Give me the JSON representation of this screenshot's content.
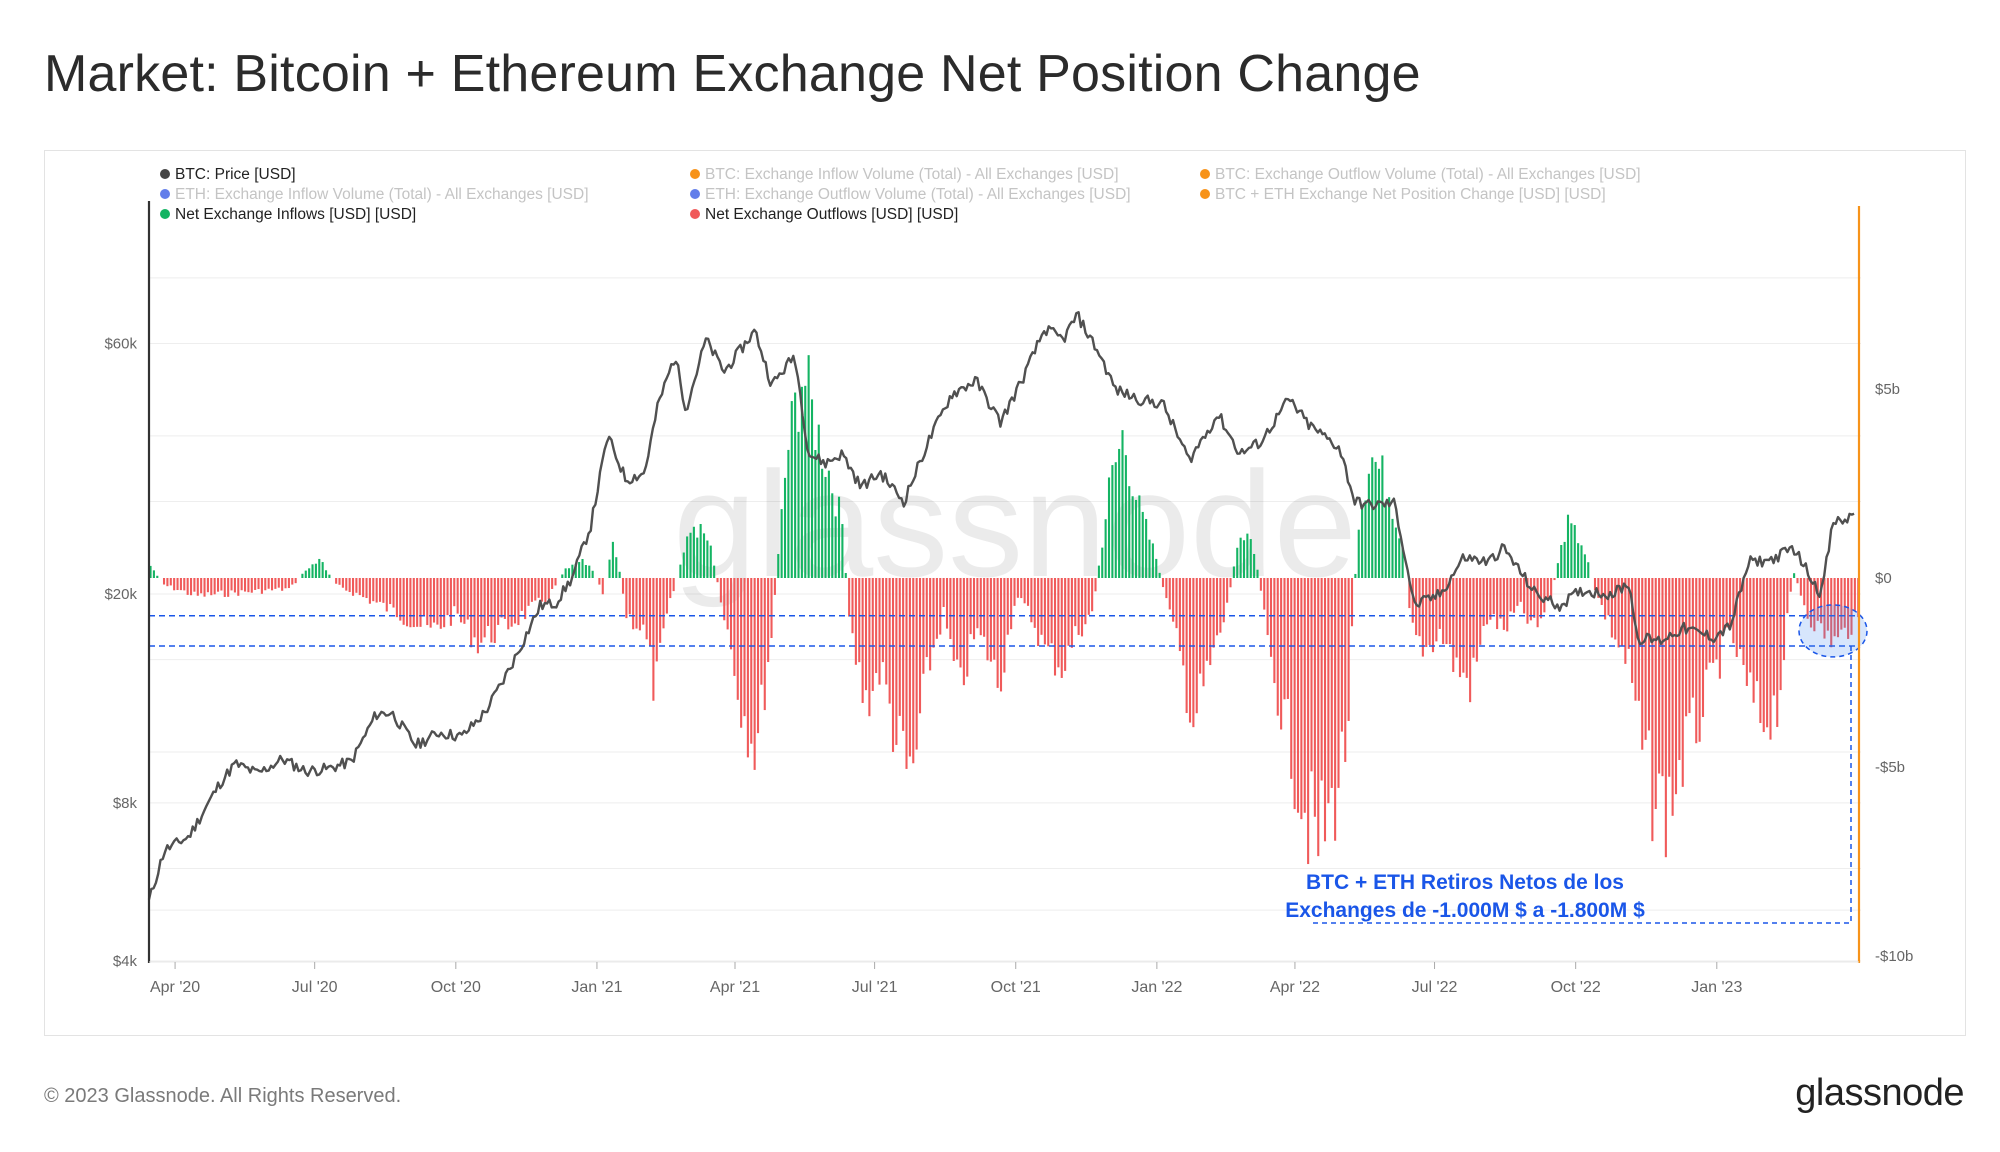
{
  "page": {
    "title": "Market: Bitcoin + Ethereum Exchange Net Position Change",
    "footer_copyright": "© 2023 Glassnode. All Rights Reserved.",
    "footer_logo": "glassnode",
    "watermark": "glassnode"
  },
  "chart_data": {
    "type": "bar",
    "legend": [
      {
        "label": "BTC: Price [USD]",
        "color": "#444444",
        "active": true
      },
      {
        "label": "BTC: Exchange Inflow Volume (Total) - All Exchanges [USD]",
        "color": "#f7931a",
        "active": false
      },
      {
        "label": "BTC: Exchange Outflow Volume (Total) - All Exchanges [USD]",
        "color": "#f7931a",
        "active": false
      },
      {
        "label": "ETH: Exchange Inflow Volume (Total) - All Exchanges [USD]",
        "color": "#627eea",
        "active": false
      },
      {
        "label": "ETH: Exchange Outflow Volume (Total) - All Exchanges [USD]",
        "color": "#627eea",
        "active": false
      },
      {
        "label": "BTC + ETH Exchange Net Position Change [USD] [USD]",
        "color": "#f7931a",
        "active": false
      },
      {
        "label": "Net Exchange Inflows [USD] [USD]",
        "color": "#14b463",
        "active": true
      },
      {
        "label": "Net Exchange Outflows [USD] [USD]",
        "color": "#f05a5a",
        "active": true
      }
    ],
    "x_ticks": [
      "Apr '20",
      "Jul '20",
      "Oct '20",
      "Jan '21",
      "Apr '21",
      "Jul '21",
      "Oct '21",
      "Jan '22",
      "Apr '22",
      "Jul '22",
      "Oct '22",
      "Jan '23"
    ],
    "left_axis": {
      "scale": "log",
      "ticks": [
        "$4k",
        "$8k",
        "$20k",
        "$60k"
      ],
      "tick_values": [
        4000,
        8000,
        20000,
        60000
      ],
      "range": [
        4000,
        90000
      ]
    },
    "right_axis": {
      "ticks": [
        "$5b",
        "$0",
        "-$5b",
        "-$10b"
      ],
      "tick_values": [
        5,
        0,
        -5,
        -10
      ],
      "unit": "billion USD",
      "range": [
        -10,
        10
      ]
    },
    "x_range": [
      "2020-03-15",
      "2023-04-05"
    ],
    "btc_price_series": {
      "name": "BTC: Price [USD]",
      "dates": [
        "2020-03-15",
        "2020-03-25",
        "2020-04-10",
        "2020-04-30",
        "2020-05-10",
        "2020-05-25",
        "2020-06-10",
        "2020-06-25",
        "2020-07-10",
        "2020-07-25",
        "2020-08-10",
        "2020-08-20",
        "2020-09-05",
        "2020-09-20",
        "2020-10-05",
        "2020-10-20",
        "2020-11-01",
        "2020-11-10",
        "2020-11-25",
        "2020-12-05",
        "2020-12-16",
        "2020-12-28",
        "2021-01-08",
        "2021-01-20",
        "2021-02-01",
        "2021-02-10",
        "2021-02-21",
        "2021-02-28",
        "2021-03-13",
        "2021-03-25",
        "2021-04-14",
        "2021-04-25",
        "2021-05-10",
        "2021-05-19",
        "2021-05-30",
        "2021-06-10",
        "2021-06-22",
        "2021-07-05",
        "2021-07-20",
        "2021-08-05",
        "2021-08-20",
        "2021-09-05",
        "2021-09-21",
        "2021-10-05",
        "2021-10-20",
        "2021-11-01",
        "2021-11-10",
        "2021-11-25",
        "2021-12-05",
        "2021-12-20",
        "2022-01-05",
        "2022-01-22",
        "2022-02-10",
        "2022-02-24",
        "2022-03-10",
        "2022-03-28",
        "2022-04-10",
        "2022-04-30",
        "2022-05-10",
        "2022-05-20",
        "2022-06-05",
        "2022-06-18",
        "2022-07-05",
        "2022-07-20",
        "2022-08-05",
        "2022-08-15",
        "2022-09-05",
        "2022-09-20",
        "2022-10-05",
        "2022-10-25",
        "2022-11-05",
        "2022-11-10",
        "2022-11-25",
        "2022-12-10",
        "2022-12-30",
        "2023-01-10",
        "2023-01-22",
        "2023-02-05",
        "2023-02-20",
        "2023-03-10",
        "2023-03-18",
        "2023-03-25",
        "2023-04-01"
      ],
      "values": [
        5200,
        6500,
        6900,
        8700,
        9500,
        9100,
        9700,
        9200,
        9300,
        9600,
        11800,
        11900,
        10300,
        10900,
        10700,
        11900,
        13700,
        15400,
        19000,
        19200,
        21500,
        27000,
        40000,
        33000,
        34000,
        46000,
        57000,
        45000,
        61000,
        53000,
        63500,
        50000,
        57000,
        37000,
        35500,
        37000,
        32000,
        34000,
        30000,
        39000,
        48000,
        51000,
        42500,
        51000,
        64000,
        61000,
        68000,
        57000,
        49000,
        47000,
        46000,
        36000,
        44000,
        37000,
        39000,
        47000,
        42000,
        38000,
        30000,
        29500,
        29800,
        19000,
        20000,
        23500,
        23000,
        24500,
        20000,
        19000,
        20300,
        20000,
        21000,
        16500,
        16300,
        17200,
        16550,
        17400,
        23000,
        23200,
        24500,
        20000,
        27500,
        27500,
        28500
      ]
    },
    "net_flow_series": {
      "name": "BTC + ETH Exchange Net Position Change",
      "unit": "billion USD",
      "dates": [
        "2020-03-15",
        "2020-03-25",
        "2020-04-15",
        "2020-05-15",
        "2020-06-15",
        "2020-06-27",
        "2020-07-05",
        "2020-07-15",
        "2020-08-05",
        "2020-08-25",
        "2020-09-15",
        "2020-10-01",
        "2020-10-15",
        "2020-11-01",
        "2020-11-15",
        "2020-12-01",
        "2020-12-12",
        "2020-12-20",
        "2020-12-28",
        "2021-01-05",
        "2021-01-12",
        "2021-01-20",
        "2021-02-01",
        "2021-02-08",
        "2021-02-15",
        "2021-02-25",
        "2021-03-05",
        "2021-03-15",
        "2021-03-25",
        "2021-04-05",
        "2021-04-15",
        "2021-04-25",
        "2021-05-05",
        "2021-05-15",
        "2021-05-22",
        "2021-06-01",
        "2021-06-10",
        "2021-06-15",
        "2021-06-25",
        "2021-07-05",
        "2021-07-15",
        "2021-07-25",
        "2021-08-05",
        "2021-08-15",
        "2021-08-25",
        "2021-09-05",
        "2021-09-12",
        "2021-09-20",
        "2021-10-01",
        "2021-10-10",
        "2021-10-20",
        "2021-11-01",
        "2021-11-10",
        "2021-11-20",
        "2021-12-01",
        "2021-12-10",
        "2021-12-20",
        "2022-01-01",
        "2022-01-15",
        "2022-01-25",
        "2022-02-01",
        "2022-02-15",
        "2022-02-25",
        "2022-03-05",
        "2022-03-15",
        "2022-03-25",
        "2022-04-05",
        "2022-04-15",
        "2022-04-25",
        "2022-05-05",
        "2022-05-12",
        "2022-05-20",
        "2022-06-01",
        "2022-06-10",
        "2022-06-16",
        "2022-06-25",
        "2022-07-05",
        "2022-07-15",
        "2022-07-25",
        "2022-08-05",
        "2022-08-15",
        "2022-08-25",
        "2022-09-05",
        "2022-09-15",
        "2022-09-25",
        "2022-10-05",
        "2022-10-15",
        "2022-10-25",
        "2022-11-05",
        "2022-11-12",
        "2022-11-20",
        "2022-11-30",
        "2022-12-10",
        "2022-12-20",
        "2023-01-01",
        "2023-01-10",
        "2023-01-20",
        "2023-01-30",
        "2023-02-10",
        "2023-02-20",
        "2023-03-01",
        "2023-03-10",
        "2023-03-20",
        "2023-04-01"
      ],
      "values": [
        0.4,
        -0.2,
        -0.5,
        -0.4,
        -0.3,
        0.3,
        0.5,
        -0.2,
        -0.6,
        -1.0,
        -1.5,
        -1.0,
        -1.8,
        -1.4,
        -1.0,
        -0.5,
        0.3,
        0.5,
        0.4,
        -0.5,
        1.2,
        -1.0,
        -1.5,
        -3.2,
        -1.2,
        0.5,
        1.5,
        1.0,
        -1.0,
        -3.5,
        -4.8,
        -1.5,
        3.5,
        5.8,
        4.5,
        3.0,
        1.5,
        -1.5,
        -3.5,
        -2.5,
        -4.5,
        -5.8,
        -2.5,
        -1.0,
        -3.2,
        -1.5,
        -2.0,
        -3.0,
        -0.5,
        -1.0,
        -2.0,
        -2.5,
        -1.5,
        -1.0,
        2.5,
        4.0,
        2.0,
        0.5,
        -2.0,
        -4.0,
        -3.0,
        -1.0,
        1.5,
        1.0,
        -2.0,
        -4.0,
        -6.0,
        -7.5,
        -6.5,
        -4.5,
        1.5,
        3.5,
        2.5,
        1.0,
        -1.5,
        -2.0,
        -1.5,
        -2.5,
        -3.0,
        -1.0,
        -1.5,
        -0.8,
        -1.5,
        -0.5,
        1.5,
        1.0,
        -0.5,
        -1.5,
        -2.5,
        -4.5,
        -6.0,
        -6.5,
        -5.0,
        -4.0,
        -2.5,
        -1.5,
        -3.0,
        -4.0,
        -3.5,
        0.2,
        -1.0,
        -1.5,
        -1.8,
        -1.2
      ]
    },
    "annotation": {
      "text_line1": "BTC + ETH Retiros Netos de los",
      "text_line2": "Exchanges de -1.000M $ a -1.800M $",
      "range_low": -1.8,
      "range_high": -1.0
    }
  }
}
